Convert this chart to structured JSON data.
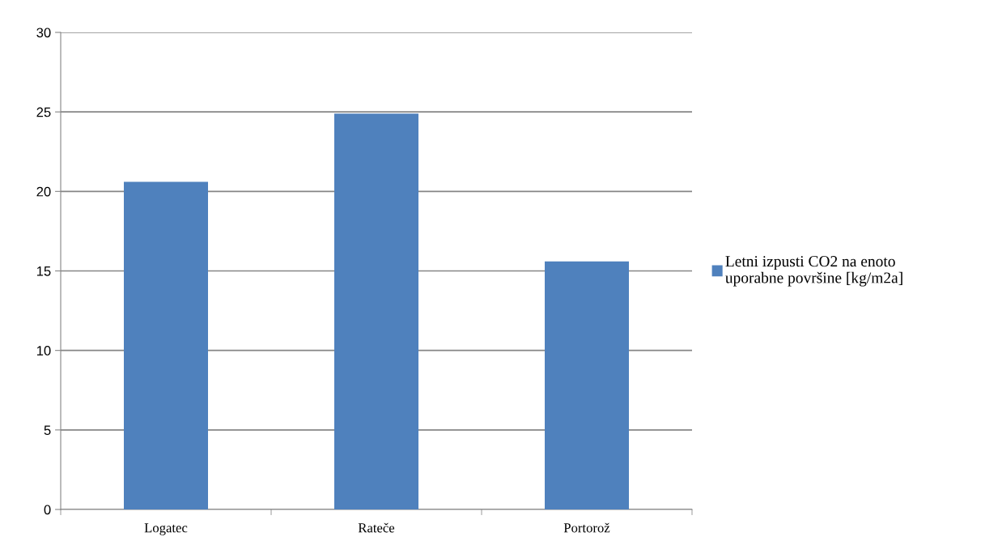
{
  "chart_data": {
    "type": "bar",
    "categories": [
      "Logatec",
      "Rateče",
      "Portorož"
    ],
    "series": [
      {
        "name": "Letni izpusti CO2 na enoto uporabne površine [kg/m2a]",
        "color": "#4f81bd",
        "values": [
          20.6,
          24.9,
          15.6
        ]
      }
    ],
    "ylim": [
      0,
      30
    ],
    "yticks": [
      0,
      5,
      10,
      15,
      20,
      25,
      30
    ],
    "grid": "y",
    "legend": "right"
  }
}
